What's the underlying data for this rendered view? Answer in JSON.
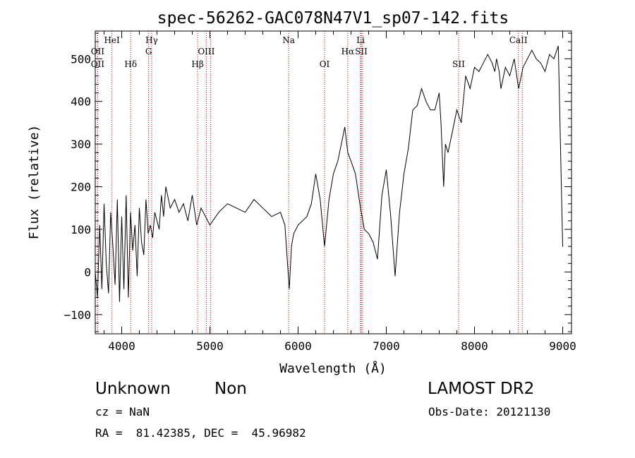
{
  "chart_data": {
    "type": "line",
    "title": "spec-56262-GAC078N47V1_sp07-142.fits",
    "xlabel": "Wavelength (Å)",
    "ylabel": "Flux (relative)",
    "xlim": [
      3700,
      9100
    ],
    "ylim": [
      -145,
      565
    ],
    "xticks": [
      4000,
      5000,
      6000,
      7000,
      8000,
      9000
    ],
    "yticks": [
      -100,
      0,
      100,
      200,
      300,
      400,
      500
    ],
    "grid": false,
    "series_color": "#000000",
    "line_color": "#cc0000",
    "lines": [
      {
        "label": "OII",
        "x": 3727,
        "row": 1
      },
      {
        "label": "OII",
        "x": 3727,
        "row": 2
      },
      {
        "label": "HeI",
        "x": 3889,
        "row": 0
      },
      {
        "label": "Hδ",
        "x": 4102,
        "row": 2
      },
      {
        "label": "Hγ",
        "x": 4340,
        "row": 0
      },
      {
        "label": "G",
        "x": 4305,
        "row": 1
      },
      {
        "label": "Hβ",
        "x": 4861,
        "row": 2
      },
      {
        "label": "OIII",
        "x": 4959,
        "row": 1
      },
      {
        "label": "OIII",
        "x": 5007,
        "row": -1
      },
      {
        "label": "Na",
        "x": 5893,
        "row": 0
      },
      {
        "label": "OI",
        "x": 6300,
        "row": 2
      },
      {
        "label": "Hα",
        "x": 6563,
        "row": 1
      },
      {
        "label": "SII",
        "x": 6716,
        "row": 1
      },
      {
        "label": "SII",
        "x": 6731,
        "row": -1
      },
      {
        "label": "Li",
        "x": 6708,
        "row": 0
      },
      {
        "label": "SII",
        "x": 7820,
        "row": 2
      },
      {
        "label": "CaII",
        "x": 8498,
        "row": 0
      },
      {
        "label": "CaII",
        "x": 8542,
        "row": -1
      }
    ],
    "spectrum": {
      "x": [
        3700,
        3725,
        3750,
        3775,
        3800,
        3825,
        3850,
        3875,
        3900,
        3925,
        3950,
        3975,
        4000,
        4025,
        4050,
        4075,
        4100,
        4125,
        4150,
        4175,
        4200,
        4225,
        4250,
        4275,
        4300,
        4325,
        4350,
        4375,
        4400,
        4425,
        4450,
        4475,
        4500,
        4550,
        4600,
        4650,
        4700,
        4750,
        4800,
        4850,
        4900,
        4950,
        5000,
        5100,
        5200,
        5300,
        5400,
        5500,
        5600,
        5700,
        5800,
        5850,
        5900,
        5925,
        5950,
        6000,
        6100,
        6150,
        6200,
        6250,
        6300,
        6350,
        6400,
        6450,
        6500,
        6530,
        6563,
        6600,
        6650,
        6700,
        6750,
        6800,
        6850,
        6900,
        6950,
        7000,
        7050,
        7100,
        7120,
        7150,
        7200,
        7250,
        7300,
        7350,
        7400,
        7450,
        7500,
        7550,
        7600,
        7620,
        7650,
        7670,
        7700,
        7750,
        7800,
        7850,
        7900,
        7950,
        8000,
        8050,
        8100,
        8150,
        8200,
        8230,
        8250,
        8280,
        8300,
        8350,
        8400,
        8450,
        8500,
        8550,
        8600,
        8650,
        8700,
        8750,
        8800,
        8850,
        8900,
        8950,
        9000,
        9005
      ],
      "y": [
        0,
        -60,
        110,
        -40,
        160,
        20,
        -50,
        140,
        60,
        -30,
        170,
        -70,
        130,
        -40,
        180,
        -60,
        140,
        50,
        110,
        -10,
        150,
        70,
        40,
        170,
        90,
        110,
        80,
        140,
        120,
        100,
        180,
        130,
        200,
        150,
        170,
        140,
        160,
        120,
        180,
        110,
        150,
        130,
        110,
        140,
        160,
        150,
        140,
        170,
        150,
        130,
        140,
        110,
        -40,
        60,
        90,
        110,
        130,
        160,
        230,
        170,
        60,
        170,
        230,
        260,
        310,
        340,
        280,
        260,
        230,
        160,
        100,
        90,
        70,
        30,
        180,
        240,
        130,
        -10,
        50,
        140,
        230,
        290,
        380,
        390,
        430,
        400,
        380,
        380,
        420,
        350,
        200,
        300,
        280,
        330,
        380,
        350,
        460,
        430,
        480,
        470,
        490,
        510,
        490,
        470,
        500,
        470,
        430,
        480,
        460,
        500,
        430,
        480,
        500,
        520,
        500,
        490,
        470,
        510,
        500,
        530,
        60,
        60
      ]
    }
  },
  "info": {
    "object": "Unknown",
    "class": "Non",
    "survey": "LAMOST DR2",
    "redshift": "cz = NaN",
    "obsdate": "Obs-Date: 20121130",
    "coords": "RA =  81.42385, DEC =  45.96982"
  }
}
